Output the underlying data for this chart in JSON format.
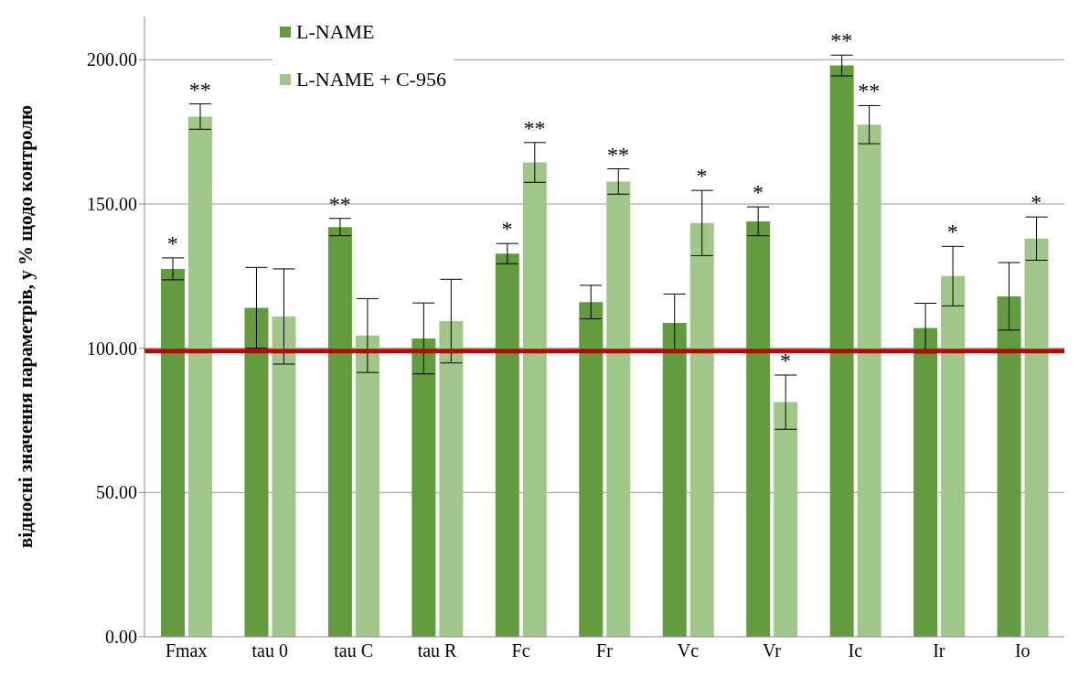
{
  "chart_data": {
    "type": "bar",
    "ylabel": "відносні значення параметрів, у % щодо контролю",
    "categories": [
      "Fmax",
      "tau 0",
      "tau C",
      "tau R",
      "Fc",
      "Fr",
      "Vc",
      "Vr",
      "Ic",
      "Ir",
      "Io"
    ],
    "series": [
      {
        "name": "L-NAME",
        "color": "#629c3f",
        "values": [
          127.5,
          114,
          142,
          103.4,
          132.8,
          116,
          108.8,
          144,
          198,
          107,
          118
        ],
        "errors": [
          3.8,
          14,
          3,
          12.3,
          3.5,
          5.8,
          10,
          5,
          3.6,
          8.6,
          11.7
        ]
      },
      {
        "name": "L-NAME + C-956",
        "color": "#a0c68a",
        "values": [
          180.3,
          111,
          104.4,
          109.4,
          164.4,
          157.8,
          143.4,
          81.3,
          177.5,
          125,
          138
        ],
        "errors": [
          4.4,
          16.5,
          12.8,
          14.5,
          6.9,
          4.4,
          11.3,
          9.4,
          6.6,
          10.3,
          7.5
        ]
      }
    ],
    "ylim": [
      0,
      215
    ],
    "yticks": [
      {
        "value": 0,
        "label": "0.00"
      },
      {
        "value": 50,
        "label": "50.00"
      },
      {
        "value": 100,
        "label": "100.00"
      },
      {
        "value": 150,
        "label": "150.00"
      },
      {
        "value": 200,
        "label": "200.00"
      }
    ],
    "grid": "y",
    "legend": "top left",
    "ref_lines": [
      {
        "axis": "y",
        "value": 99,
        "color": "#c00000"
      }
    ],
    "annotations": [
      {
        "text": "*",
        "x": "Fmax",
        "y": 127.5
      },
      {
        "text": "**",
        "x": "Fmax",
        "y": 180.3
      },
      {
        "text": "**",
        "x": "tau C",
        "y": 142
      },
      {
        "text": "*",
        "x": "Fc",
        "y": 132.8
      },
      {
        "text": "**",
        "x": "Fc",
        "y": 164.4
      },
      {
        "text": "**",
        "x": "Fr",
        "y": 157.8
      },
      {
        "text": "*",
        "x": "Vc",
        "y": 143.4
      },
      {
        "text": "*",
        "x": "Vr",
        "y": 144
      },
      {
        "text": "*",
        "x": "Vr",
        "y": 81.3
      },
      {
        "text": "**",
        "x": "Ic",
        "y": 198
      },
      {
        "text": "**",
        "x": "Ic",
        "y": 177.5
      },
      {
        "text": "*",
        "x": "Ir",
        "y": 125
      },
      {
        "text": "*",
        "x": "Io",
        "y": 138
      }
    ]
  }
}
